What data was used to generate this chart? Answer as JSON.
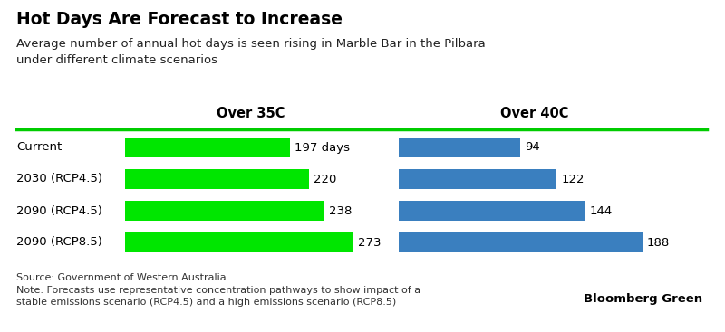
{
  "title": "Hot Days Are Forecast to Increase",
  "subtitle": "Average number of annual hot days is seen rising in Marble Bar in the Pilbara\nunder different climate scenarios",
  "categories": [
    "Current",
    "2030 (RCP4.5)",
    "2090 (RCP4.5)",
    "2090 (RCP8.5)"
  ],
  "over35_values": [
    197,
    220,
    238,
    273
  ],
  "over40_values": [
    94,
    122,
    144,
    188
  ],
  "over35_label": "Over 35C",
  "over40_label": "Over 40C",
  "over35_color": "#00e600",
  "over40_color": "#3a7fbf",
  "separator_color": "#00cc00",
  "source_text": "Source: Government of Western Australia\nNote: Forecasts use representative concentration pathways to show impact of a\nstable emissions scenario (RCP4.5) and a high emissions scenario (RCP8.5)",
  "bloomberg_text": "Bloomberg Green",
  "bg_color": "#ffffff",
  "text_color": "#000000",
  "over35_max": 300,
  "over40_max": 210,
  "fig_width": 8.0,
  "fig_height": 3.67
}
